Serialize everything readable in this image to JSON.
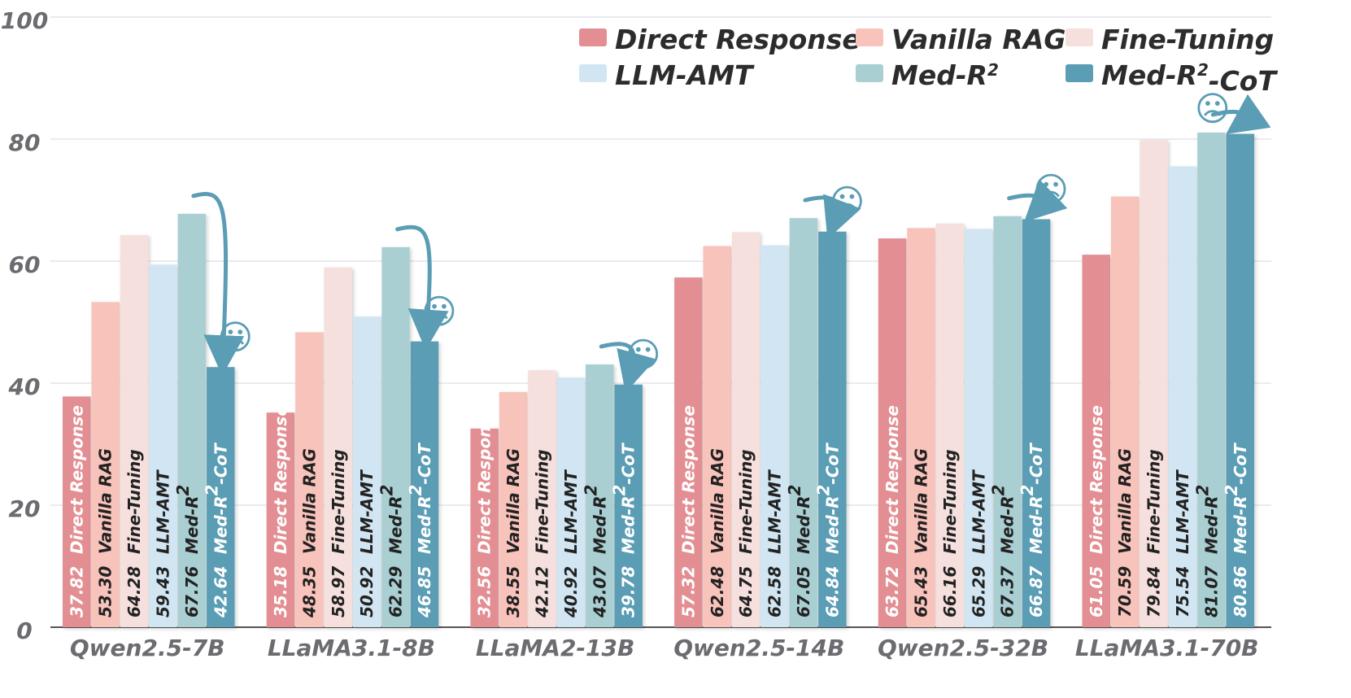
{
  "chart_data": {
    "type": "bar",
    "title": "",
    "xlabel": "",
    "ylabel": "",
    "ylim": [
      0,
      100
    ],
    "yticks": [
      "0",
      "20",
      "40",
      "60",
      "80",
      "100"
    ],
    "categories": [
      "Qwen2.5-7B",
      "LLaMA3.1-8B",
      "LLaMA2-13B",
      "Qwen2.5-14B",
      "Qwen2.5-32B",
      "LLaMA3.1-70B"
    ],
    "series": [
      {
        "name": "Direct Response",
        "color": "#e38e92",
        "label_color": "#ffffff",
        "values": [
          37.82,
          35.18,
          32.56,
          57.32,
          63.72,
          61.05
        ]
      },
      {
        "name": "Vanilla RAG",
        "color": "#f8c3bb",
        "label_color": "#222222",
        "values": [
          53.3,
          48.35,
          38.55,
          62.48,
          65.43,
          70.59
        ]
      },
      {
        "name": "Fine-Tuning",
        "color": "#f5e0dd",
        "label_color": "#222222",
        "values": [
          64.28,
          58.97,
          42.12,
          64.75,
          66.16,
          79.84
        ]
      },
      {
        "name": "LLM-AMT",
        "color": "#d1e6f2",
        "label_color": "#222222",
        "values": [
          59.43,
          50.92,
          40.92,
          62.58,
          65.29,
          75.54
        ]
      },
      {
        "name": "Med-R²",
        "color": "#a9cfd2",
        "label_color": "#222222",
        "values": [
          67.76,
          62.29,
          43.07,
          67.05,
          67.37,
          81.07
        ]
      },
      {
        "name": "Med-R²-CoT",
        "color": "#5a9db4",
        "label_color": "#ffffff",
        "values": [
          42.64,
          46.85,
          39.78,
          64.84,
          66.87,
          80.86
        ]
      }
    ],
    "value_labels": [
      [
        "37.82",
        "53.30",
        "64.28",
        "59.43",
        "67.76",
        "42.64"
      ],
      [
        "35.18",
        "48.35",
        "58.97",
        "50.92",
        "62.29",
        "46.85"
      ],
      [
        "32.56",
        "38.55",
        "42.12",
        "40.92",
        "43.07",
        "39.78"
      ],
      [
        "57.32",
        "62.48",
        "64.75",
        "62.58",
        "67.05",
        "64.84"
      ],
      [
        "63.72",
        "65.43",
        "66.16",
        "65.29",
        "67.37",
        "66.87"
      ],
      [
        "61.05",
        "70.59",
        "79.84",
        "75.54",
        "81.07",
        "80.86"
      ]
    ],
    "legend": {
      "placement": "top-right",
      "entries": [
        "Direct Response",
        "Vanilla RAG",
        "Fine-Tuning",
        "LLM-AMT",
        "Med-R²",
        "Med-R²-CoT"
      ]
    },
    "annotations": {
      "sad_face": "☹",
      "description": "curved arrow from Med-R² bar to Med-R²-CoT bar with sad face in every group"
    },
    "grid": true
  }
}
